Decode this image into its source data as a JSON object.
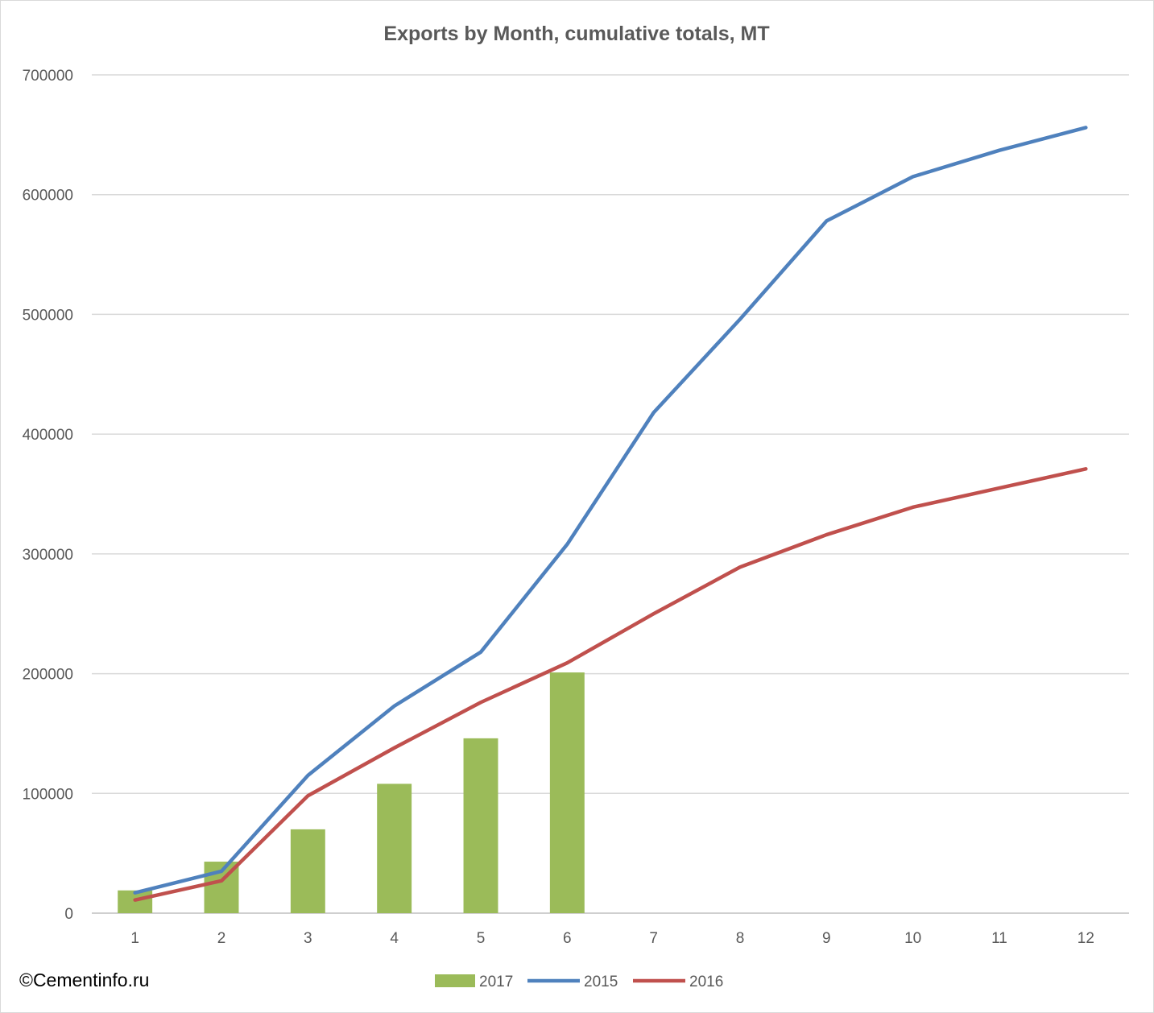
{
  "watermark": "©Cementinfo.ru",
  "chart_data": {
    "type": "bar",
    "title": "Exports by Month, cumulative totals, MT",
    "xlabel": "",
    "ylabel": "",
    "categories": [
      "1",
      "2",
      "3",
      "4",
      "5",
      "6",
      "7",
      "8",
      "9",
      "10",
      "11",
      "12"
    ],
    "ylim": [
      0,
      700000
    ],
    "yticks": [
      0,
      100000,
      200000,
      300000,
      400000,
      500000,
      600000,
      700000
    ],
    "grid": true,
    "legend_position": "bottom",
    "series": [
      {
        "name": "2017",
        "type": "bar",
        "color": "#9bbb59",
        "values": [
          19000,
          43000,
          70000,
          108000,
          146000,
          201000,
          null,
          null,
          null,
          null,
          null,
          null
        ]
      },
      {
        "name": "2015",
        "type": "line",
        "color": "#4f81bd",
        "values": [
          17000,
          35000,
          115000,
          173000,
          218000,
          308000,
          418000,
          496000,
          578000,
          615000,
          637000,
          656000
        ]
      },
      {
        "name": "2016",
        "type": "line",
        "color": "#c0504d",
        "values": [
          11000,
          27000,
          98000,
          138000,
          176000,
          209000,
          250000,
          289000,
          316000,
          339000,
          355000,
          371000
        ]
      }
    ]
  }
}
